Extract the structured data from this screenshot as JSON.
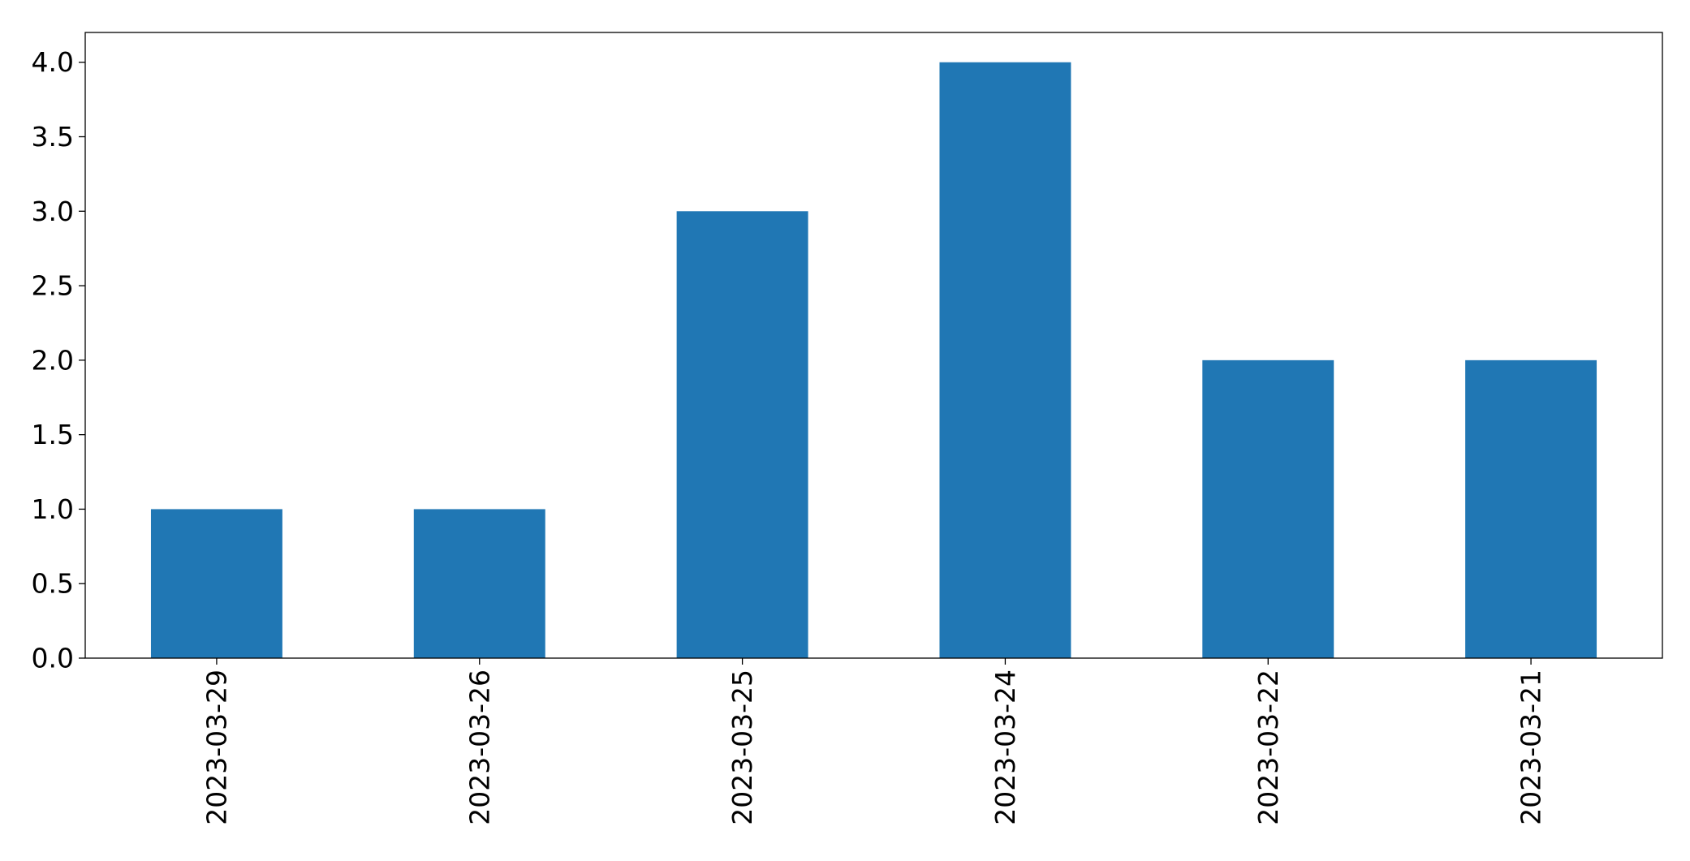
{
  "chart_data": {
    "type": "bar",
    "categories": [
      "2023-03-29",
      "2023-03-26",
      "2023-03-25",
      "2023-03-24",
      "2023-03-22",
      "2023-03-21"
    ],
    "values": [
      1,
      1,
      3,
      4,
      2,
      2
    ],
    "title": "",
    "xlabel": "",
    "ylabel": "",
    "ylim": [
      0,
      4.2
    ],
    "yticks": [
      "0.0",
      "0.5",
      "1.0",
      "1.5",
      "2.0",
      "2.5",
      "3.0",
      "3.5",
      "4.0"
    ],
    "ytick_values": [
      0,
      0.5,
      1.0,
      1.5,
      2.0,
      2.5,
      3.0,
      3.5,
      4.0
    ],
    "x_tick_rotation": "vertical",
    "grid": false,
    "legend": "none",
    "colors": {
      "bar": "#2077b4",
      "axis": "#000000",
      "background": "#ffffff"
    }
  }
}
